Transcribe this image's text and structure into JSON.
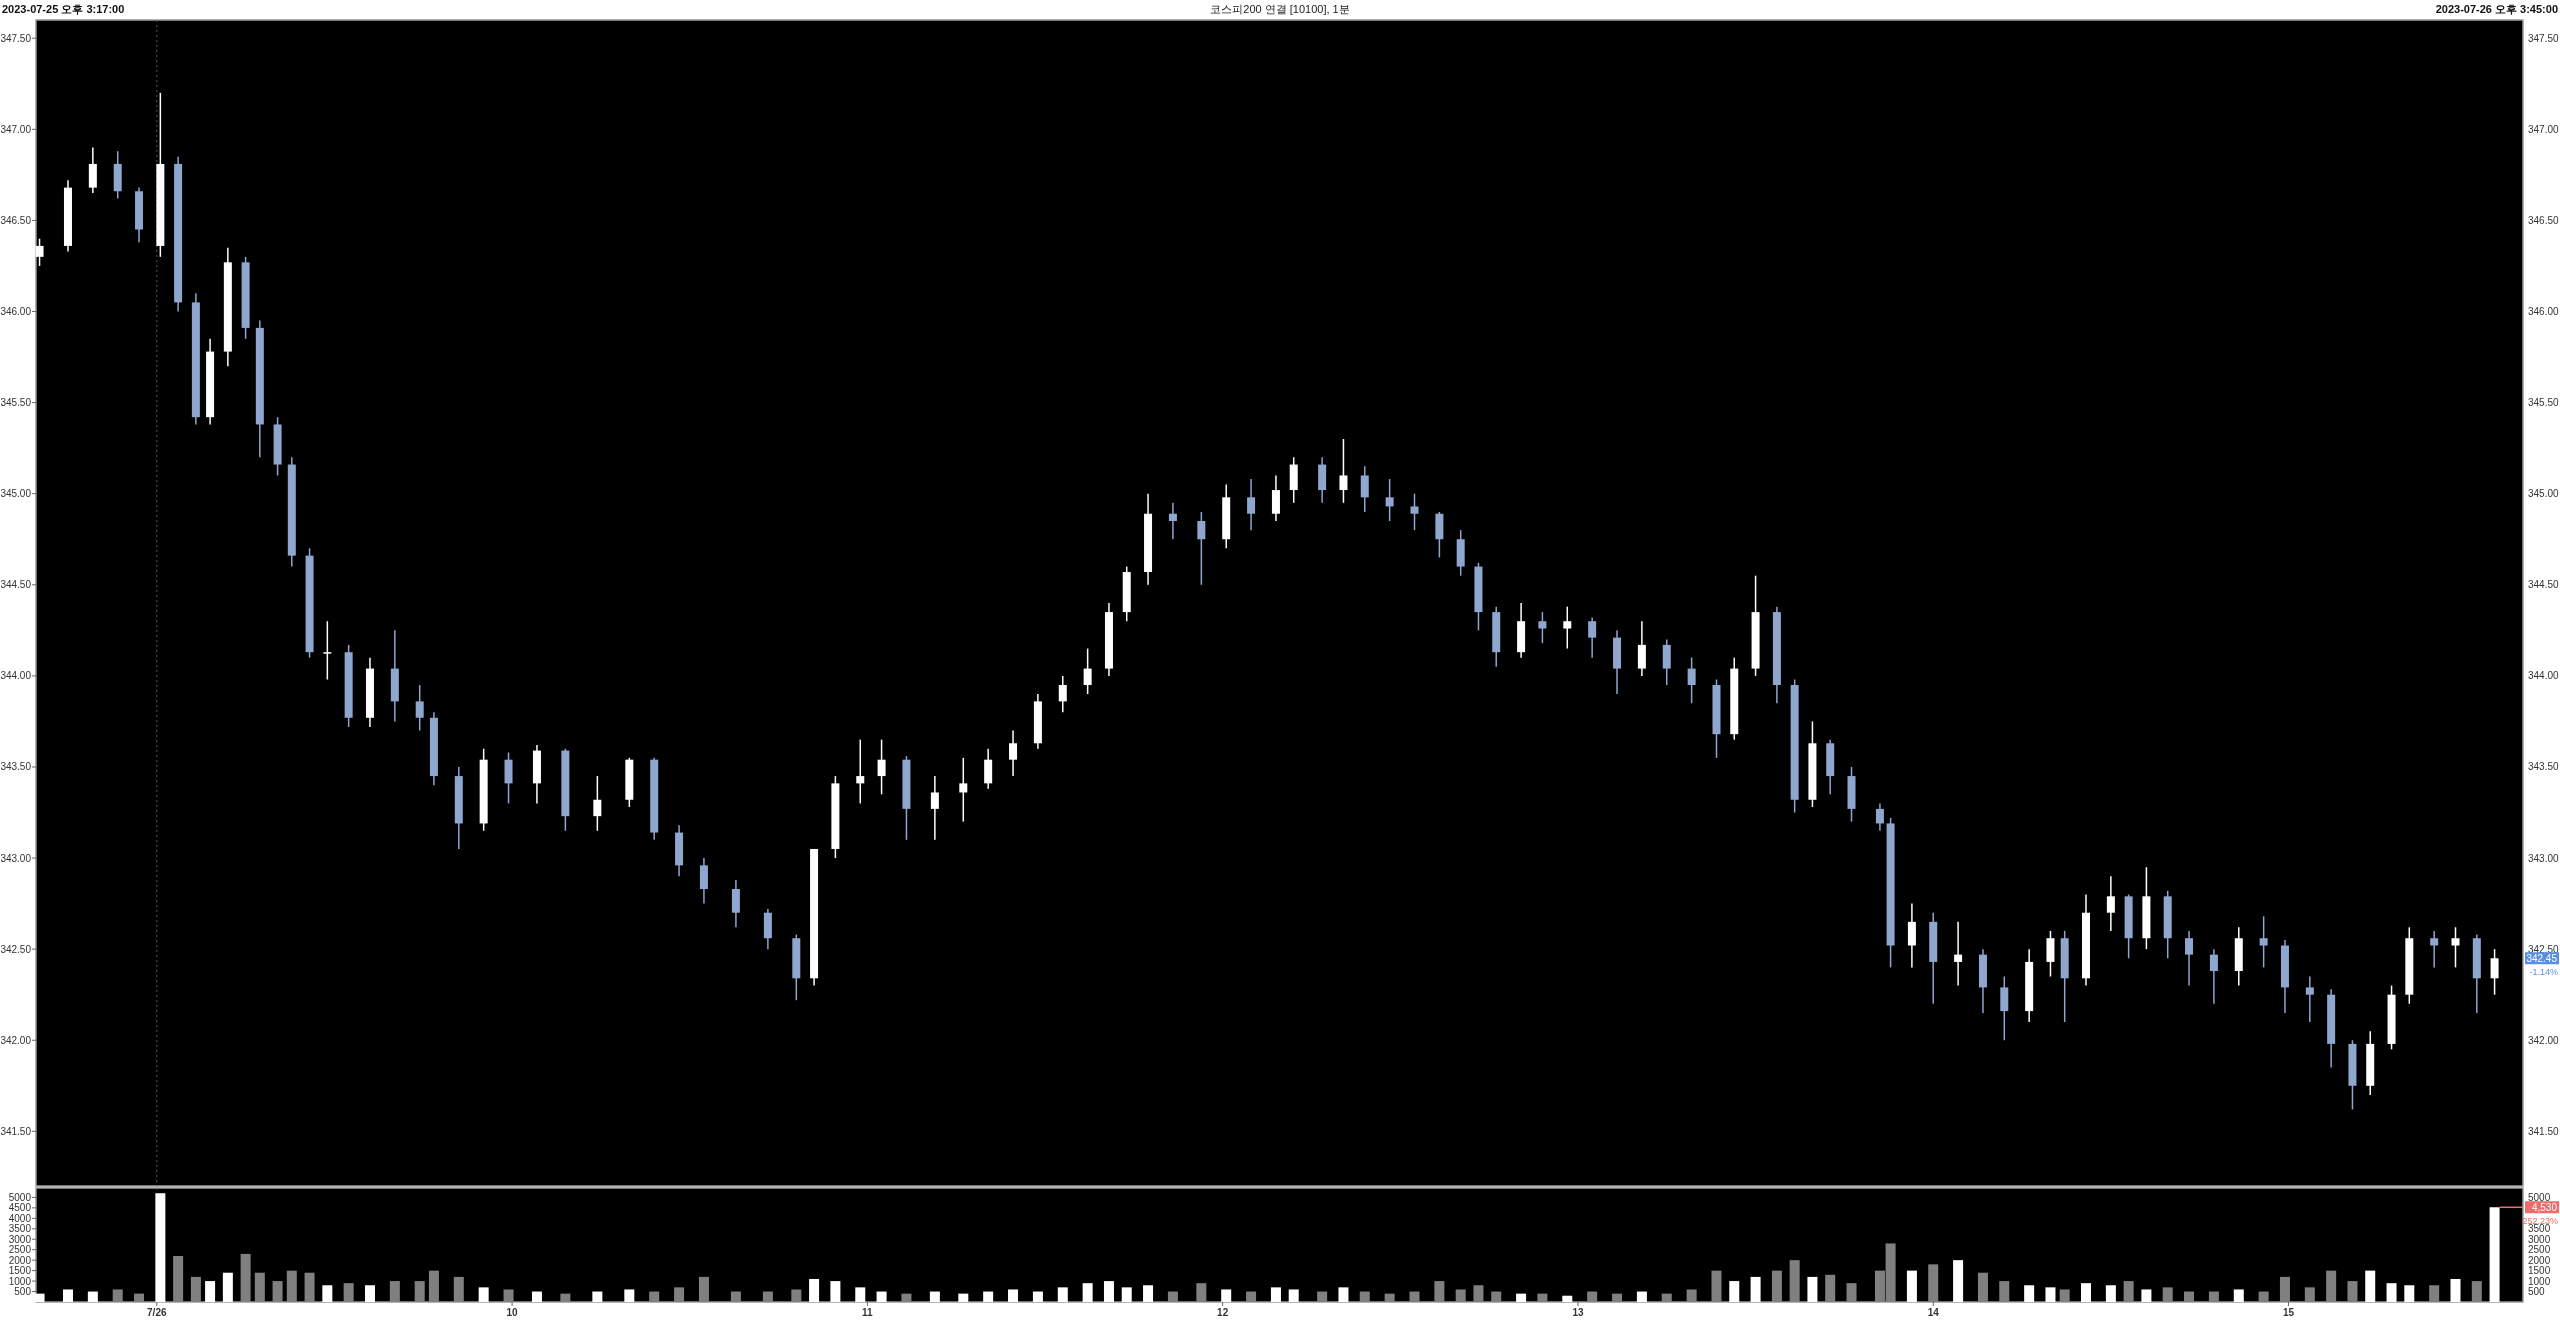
{
  "chart_data": [
    {
      "type": "candlestick",
      "title": "코스피200 연결 [10100], 1분",
      "annotations": [
        "2023-07-25 오후 3:17:00",
        "2023-07-26 오후 3:45:00",
        "342.45",
        "-1.14%"
      ],
      "y2lim": [
        341.2,
        347.6
      ],
      "y2ticks": [
        {
          "value": 341.5,
          "label": "341.50"
        },
        {
          "value": 342,
          "label": "342.00"
        },
        {
          "value": 342.5,
          "label": "342.50"
        },
        {
          "value": 343,
          "label": "343.00"
        },
        {
          "value": 343.5,
          "label": "343.50"
        },
        {
          "value": 344,
          "label": "344.00"
        },
        {
          "value": 344.5,
          "label": "344.50"
        },
        {
          "value": 345,
          "label": "345.00"
        },
        {
          "value": 345.5,
          "label": "345.50"
        },
        {
          "value": 346,
          "label": "346.00"
        },
        {
          "value": 346.5,
          "label": "346.50"
        },
        {
          "value": 347,
          "label": "347.00"
        },
        {
          "value": 347.5,
          "label": "347.50"
        }
      ],
      "x": [
        8.67,
        8.75,
        8.82,
        8.89,
        8.95,
        9.01,
        9.06,
        9.11,
        9.15,
        9.2,
        9.25,
        9.29,
        9.34,
        9.38,
        9.43,
        9.48,
        9.54,
        9.6,
        9.67,
        9.74,
        9.78,
        9.85,
        9.92,
        9.99,
        10.07,
        10.15,
        10.24,
        10.33,
        10.4,
        10.47,
        10.54,
        10.63,
        10.72,
        10.8,
        10.85,
        10.91,
        10.98,
        11.04,
        11.11,
        11.19,
        11.27,
        11.34,
        11.41,
        11.48,
        11.55,
        11.62,
        11.68,
        11.73,
        11.79,
        11.86,
        11.94,
        12.01,
        12.08,
        12.15,
        12.2,
        12.28,
        12.34,
        12.4,
        12.47,
        12.54,
        12.61,
        12.67,
        12.72,
        12.77,
        12.84,
        12.9,
        12.97,
        13.04,
        13.11,
        13.18,
        13.25,
        13.32,
        13.39,
        13.44,
        13.5,
        13.56,
        13.61,
        13.66,
        13.71,
        13.77,
        13.85,
        13.88,
        13.94,
        14.0,
        14.07,
        14.14,
        14.2,
        14.27,
        14.33,
        14.37,
        14.43,
        14.5,
        14.55,
        14.6,
        14.66,
        14.72,
        14.79,
        14.86,
        14.93,
        14.99,
        15.06,
        15.12,
        15.18,
        15.23,
        15.29,
        15.34,
        15.41,
        15.47,
        15.53,
        15.58
      ],
      "ohlc": [
        [
          346.3,
          346.4,
          346.25,
          346.36
        ],
        [
          346.36,
          346.72,
          346.33,
          346.68
        ],
        [
          346.68,
          346.9,
          346.65,
          346.81
        ],
        [
          346.81,
          346.88,
          346.62,
          346.66
        ],
        [
          346.66,
          346.68,
          346.38,
          346.45
        ],
        [
          346.36,
          347.2,
          346.3,
          346.81
        ],
        [
          346.81,
          346.85,
          346.0,
          346.05
        ],
        [
          346.05,
          346.1,
          345.38,
          345.42
        ],
        [
          345.42,
          345.85,
          345.38,
          345.78
        ],
        [
          345.78,
          346.35,
          345.7,
          346.27
        ],
        [
          346.27,
          346.3,
          345.85,
          345.91
        ],
        [
          345.91,
          345.95,
          345.2,
          345.38
        ],
        [
          345.38,
          345.42,
          345.1,
          345.16
        ],
        [
          345.16,
          345.2,
          344.6,
          344.66
        ],
        [
          344.66,
          344.7,
          344.1,
          344.13
        ],
        [
          344.13,
          344.3,
          343.98,
          344.13
        ],
        [
          344.13,
          344.17,
          343.72,
          343.77
        ],
        [
          343.77,
          344.1,
          343.72,
          344.04
        ],
        [
          344.04,
          344.25,
          343.75,
          343.86
        ],
        [
          343.86,
          343.95,
          343.7,
          343.77
        ],
        [
          343.77,
          343.8,
          343.4,
          343.45
        ],
        [
          343.45,
          343.5,
          343.05,
          343.19
        ],
        [
          343.19,
          343.6,
          343.15,
          343.54
        ],
        [
          343.54,
          343.58,
          343.3,
          343.41
        ],
        [
          343.41,
          343.62,
          343.3,
          343.59
        ],
        [
          343.59,
          343.6,
          343.15,
          343.23
        ],
        [
          343.23,
          343.45,
          343.15,
          343.32
        ],
        [
          343.32,
          343.55,
          343.28,
          343.54
        ],
        [
          343.54,
          343.55,
          343.1,
          343.14
        ],
        [
          343.14,
          343.18,
          342.9,
          342.96
        ],
        [
          342.96,
          343.0,
          342.75,
          342.83
        ],
        [
          342.83,
          342.88,
          342.62,
          342.7
        ],
        [
          342.7,
          342.72,
          342.5,
          342.56
        ],
        [
          342.56,
          342.58,
          342.22,
          342.34
        ],
        [
          342.34,
          343.05,
          342.3,
          343.05
        ],
        [
          343.05,
          343.45,
          343.0,
          343.41
        ],
        [
          343.41,
          343.65,
          343.3,
          343.45
        ],
        [
          343.45,
          343.65,
          343.35,
          343.54
        ],
        [
          343.54,
          343.56,
          343.1,
          343.27
        ],
        [
          343.27,
          343.45,
          343.1,
          343.36
        ],
        [
          343.36,
          343.55,
          343.2,
          343.41
        ],
        [
          343.41,
          343.6,
          343.38,
          343.54
        ],
        [
          343.54,
          343.7,
          343.45,
          343.63
        ],
        [
          343.63,
          343.9,
          343.6,
          343.86
        ],
        [
          343.86,
          344.0,
          343.8,
          343.95
        ],
        [
          343.95,
          344.15,
          343.9,
          344.04
        ],
        [
          344.04,
          344.4,
          344.0,
          344.35
        ],
        [
          344.35,
          344.6,
          344.3,
          344.57
        ],
        [
          344.57,
          345.0,
          344.5,
          344.89
        ],
        [
          344.89,
          344.95,
          344.75,
          344.85
        ],
        [
          344.85,
          344.9,
          344.5,
          344.75
        ],
        [
          344.75,
          345.05,
          344.7,
          344.98
        ],
        [
          344.98,
          345.08,
          344.8,
          344.89
        ],
        [
          344.89,
          345.1,
          344.85,
          345.02
        ],
        [
          345.02,
          345.2,
          344.95,
          345.16
        ],
        [
          345.16,
          345.2,
          344.95,
          345.02
        ],
        [
          345.02,
          345.3,
          344.95,
          345.1
        ],
        [
          345.1,
          345.15,
          344.9,
          344.98
        ],
        [
          344.98,
          345.08,
          344.85,
          344.93
        ],
        [
          344.93,
          345.0,
          344.8,
          344.89
        ],
        [
          344.89,
          344.9,
          344.65,
          344.75
        ],
        [
          344.75,
          344.8,
          344.55,
          344.6
        ],
        [
          344.6,
          344.62,
          344.25,
          344.35
        ],
        [
          344.35,
          344.38,
          344.05,
          344.13
        ],
        [
          344.13,
          344.4,
          344.1,
          344.3
        ],
        [
          344.3,
          344.35,
          344.18,
          344.26
        ],
        [
          344.26,
          344.38,
          344.15,
          344.3
        ],
        [
          344.3,
          344.32,
          344.1,
          344.21
        ],
        [
          344.21,
          344.25,
          343.9,
          344.04
        ],
        [
          344.04,
          344.3,
          344.0,
          344.17
        ],
        [
          344.17,
          344.2,
          343.95,
          344.04
        ],
        [
          344.04,
          344.1,
          343.85,
          343.95
        ],
        [
          343.95,
          343.98,
          343.55,
          343.68
        ],
        [
          343.68,
          344.1,
          343.65,
          344.04
        ],
        [
          344.04,
          344.55,
          344.0,
          344.35
        ],
        [
          344.35,
          344.38,
          343.85,
          343.95
        ],
        [
          343.95,
          343.98,
          343.25,
          343.32
        ],
        [
          343.32,
          343.75,
          343.28,
          343.63
        ],
        [
          343.63,
          343.65,
          343.35,
          343.45
        ],
        [
          343.45,
          343.5,
          343.2,
          343.27
        ],
        [
          343.27,
          343.3,
          343.15,
          343.19
        ],
        [
          343.19,
          343.22,
          342.4,
          342.52
        ],
        [
          342.52,
          342.75,
          342.4,
          342.65
        ],
        [
          342.65,
          342.7,
          342.2,
          342.43
        ],
        [
          342.43,
          342.65,
          342.3,
          342.47
        ],
        [
          342.47,
          342.5,
          342.15,
          342.29
        ],
        [
          342.29,
          342.35,
          342.0,
          342.16
        ],
        [
          342.16,
          342.5,
          342.1,
          342.43
        ],
        [
          342.43,
          342.6,
          342.35,
          342.56
        ],
        [
          342.56,
          342.6,
          342.1,
          342.34
        ],
        [
          342.34,
          342.8,
          342.3,
          342.7
        ],
        [
          342.7,
          342.9,
          342.6,
          342.79
        ],
        [
          342.79,
          342.8,
          342.45,
          342.56
        ],
        [
          342.56,
          342.95,
          342.5,
          342.79
        ],
        [
          342.79,
          342.82,
          342.45,
          342.56
        ],
        [
          342.56,
          342.6,
          342.3,
          342.47
        ],
        [
          342.47,
          342.5,
          342.2,
          342.38
        ],
        [
          342.38,
          342.62,
          342.3,
          342.56
        ],
        [
          342.56,
          342.68,
          342.4,
          342.52
        ],
        [
          342.52,
          342.55,
          342.15,
          342.29
        ],
        [
          342.29,
          342.35,
          342.1,
          342.25
        ],
        [
          342.25,
          342.28,
          341.85,
          341.98
        ],
        [
          341.98,
          342.0,
          341.62,
          341.75
        ],
        [
          341.75,
          342.05,
          341.7,
          341.98
        ],
        [
          341.98,
          342.3,
          341.95,
          342.25
        ],
        [
          342.25,
          342.62,
          342.2,
          342.56
        ],
        [
          342.56,
          342.6,
          342.4,
          342.52
        ],
        [
          342.52,
          342.62,
          342.4,
          342.56
        ],
        [
          342.56,
          342.58,
          342.15,
          342.34
        ],
        [
          342.34,
          342.5,
          342.25,
          342.45
        ]
      ],
      "colors": [
        "#ffffff",
        "#ffffff",
        "#ffffff",
        "#8fa6cf",
        "#8fa6cf",
        "#ffffff",
        "#8fa6cf",
        "#8fa6cf",
        "#ffffff",
        "#ffffff",
        "#8fa6cf",
        "#8fa6cf",
        "#8fa6cf",
        "#8fa6cf",
        "#8fa6cf",
        "#ffffff",
        "#8fa6cf",
        "#ffffff",
        "#8fa6cf",
        "#8fa6cf",
        "#8fa6cf",
        "#8fa6cf",
        "#ffffff",
        "#8fa6cf",
        "#ffffff",
        "#8fa6cf",
        "#ffffff",
        "#ffffff",
        "#8fa6cf",
        "#8fa6cf",
        "#8fa6cf",
        "#8fa6cf",
        "#8fa6cf",
        "#8fa6cf",
        "#ffffff",
        "#ffffff",
        "#ffffff",
        "#ffffff",
        "#8fa6cf",
        "#ffffff",
        "#ffffff",
        "#ffffff",
        "#ffffff",
        "#ffffff",
        "#ffffff",
        "#ffffff",
        "#ffffff",
        "#ffffff",
        "#ffffff",
        "#8fa6cf",
        "#8fa6cf",
        "#ffffff",
        "#8fa6cf",
        "#ffffff",
        "#ffffff",
        "#8fa6cf",
        "#ffffff",
        "#8fa6cf",
        "#8fa6cf",
        "#8fa6cf",
        "#8fa6cf",
        "#8fa6cf",
        "#8fa6cf",
        "#8fa6cf",
        "#ffffff",
        "#8fa6cf",
        "#ffffff",
        "#8fa6cf",
        "#8fa6cf",
        "#ffffff",
        "#8fa6cf",
        "#8fa6cf",
        "#8fa6cf",
        "#ffffff",
        "#ffffff",
        "#8fa6cf",
        "#8fa6cf",
        "#ffffff",
        "#8fa6cf",
        "#8fa6cf",
        "#8fa6cf",
        "#8fa6cf",
        "#ffffff",
        "#8fa6cf",
        "#ffffff",
        "#8fa6cf",
        "#8fa6cf",
        "#ffffff",
        "#ffffff",
        "#8fa6cf",
        "#ffffff",
        "#ffffff",
        "#8fa6cf",
        "#ffffff",
        "#8fa6cf",
        "#8fa6cf",
        "#8fa6cf",
        "#ffffff",
        "#8fa6cf",
        "#8fa6cf",
        "#8fa6cf",
        "#8fa6cf",
        "#8fa6cf",
        "#ffffff",
        "#ffffff",
        "#ffffff",
        "#8fa6cf",
        "#ffffff",
        "#8fa6cf",
        "#ffffff"
      ],
      "xlim": [
        8.66,
        15.66
      ],
      "ylim": [
        341.2,
        347.6
      ],
      "yticks": [
        {
          "value": 341.5,
          "label": "341.50"
        },
        {
          "value": 342,
          "label": "342.00"
        },
        {
          "value": 342.5,
          "label": "342.50"
        },
        {
          "value": 343,
          "label": "343.00"
        },
        {
          "value": 343.5,
          "label": "343.50"
        },
        {
          "value": 344,
          "label": "344.00"
        },
        {
          "value": 344.5,
          "label": "344.50"
        },
        {
          "value": 345,
          "label": "345.00"
        },
        {
          "value": 345.5,
          "label": "345.50"
        },
        {
          "value": 346,
          "label": "346.00"
        },
        {
          "value": 346.5,
          "label": "346.50"
        },
        {
          "value": 347,
          "label": "347.00"
        },
        {
          "value": 347.5,
          "label": "347.50"
        }
      ],
      "tick_labels": "y",
      "ref_lines": [
        {
          "axis": "x",
          "value": 9,
          "color": "#555555",
          "line_style": "dotted"
        }
      ]
    },
    {
      "type": "bar",
      "annotations": [
        {
          "text": "4,530",
          "x": 15.58,
          "y": 4530
        },
        "252.23%"
      ],
      "x": [
        8.67,
        8.75,
        8.82,
        8.89,
        8.95,
        9.01,
        9.06,
        9.11,
        9.15,
        9.2,
        9.25,
        9.29,
        9.34,
        9.38,
        9.43,
        9.48,
        9.54,
        9.6,
        9.67,
        9.74,
        9.78,
        9.85,
        9.92,
        9.99,
        10.07,
        10.15,
        10.24,
        10.33,
        10.4,
        10.47,
        10.54,
        10.63,
        10.72,
        10.8,
        10.85,
        10.91,
        10.98,
        11.04,
        11.11,
        11.19,
        11.27,
        11.34,
        11.41,
        11.48,
        11.55,
        11.62,
        11.68,
        11.73,
        11.79,
        11.86,
        11.94,
        12.01,
        12.08,
        12.15,
        12.2,
        12.28,
        12.34,
        12.4,
        12.47,
        12.54,
        12.61,
        12.67,
        12.72,
        12.77,
        12.84,
        12.9,
        12.97,
        13.04,
        13.11,
        13.18,
        13.25,
        13.32,
        13.39,
        13.44,
        13.5,
        13.56,
        13.61,
        13.66,
        13.71,
        13.77,
        13.85,
        13.88,
        13.94,
        14.0,
        14.07,
        14.14,
        14.2,
        14.27,
        14.33,
        14.37,
        14.43,
        14.5,
        14.55,
        14.6,
        14.66,
        14.72,
        14.79,
        14.86,
        14.93,
        14.99,
        15.06,
        15.12,
        15.18,
        15.23,
        15.29,
        15.34,
        15.41,
        15.47,
        15.53,
        15.58
      ],
      "values": [
        400,
        600,
        500,
        600,
        400,
        5200,
        2200,
        1200,
        1000,
        1400,
        2300,
        1400,
        1000,
        1500,
        1400,
        800,
        900,
        800,
        1000,
        1000,
        1500,
        1200,
        700,
        600,
        500,
        400,
        500,
        600,
        500,
        700,
        1200,
        500,
        500,
        600,
        1100,
        1000,
        700,
        500,
        400,
        500,
        400,
        500,
        600,
        500,
        700,
        900,
        1000,
        700,
        800,
        500,
        900,
        600,
        500,
        700,
        600,
        500,
        700,
        500,
        400,
        500,
        1000,
        600,
        800,
        500,
        400,
        400,
        300,
        500,
        400,
        500,
        400,
        600,
        1500,
        1000,
        1200,
        1500,
        2000,
        1200,
        1300,
        900,
        1500,
        2800,
        1500,
        1800,
        2000,
        1400,
        1000,
        800,
        700,
        600,
        900,
        800,
        1000,
        600,
        700,
        500,
        500,
        600,
        500,
        1200,
        700,
        1500,
        1000,
        1500,
        900,
        800,
        800,
        1100,
        1000,
        4530
      ],
      "colors": [
        "#ffffff",
        "#ffffff",
        "#ffffff",
        "#808080",
        "#808080",
        "#ffffff",
        "#808080",
        "#808080",
        "#ffffff",
        "#ffffff",
        "#808080",
        "#808080",
        "#808080",
        "#808080",
        "#808080",
        "#ffffff",
        "#808080",
        "#ffffff",
        "#808080",
        "#808080",
        "#808080",
        "#808080",
        "#ffffff",
        "#808080",
        "#ffffff",
        "#808080",
        "#ffffff",
        "#ffffff",
        "#808080",
        "#808080",
        "#808080",
        "#808080",
        "#808080",
        "#808080",
        "#ffffff",
        "#ffffff",
        "#ffffff",
        "#ffffff",
        "#808080",
        "#ffffff",
        "#ffffff",
        "#ffffff",
        "#ffffff",
        "#ffffff",
        "#ffffff",
        "#ffffff",
        "#ffffff",
        "#ffffff",
        "#ffffff",
        "#808080",
        "#808080",
        "#ffffff",
        "#808080",
        "#ffffff",
        "#ffffff",
        "#808080",
        "#ffffff",
        "#808080",
        "#808080",
        "#808080",
        "#808080",
        "#808080",
        "#808080",
        "#808080",
        "#ffffff",
        "#808080",
        "#ffffff",
        "#808080",
        "#808080",
        "#ffffff",
        "#808080",
        "#808080",
        "#808080",
        "#ffffff",
        "#ffffff",
        "#808080",
        "#808080",
        "#ffffff",
        "#808080",
        "#808080",
        "#808080",
        "#808080",
        "#ffffff",
        "#808080",
        "#ffffff",
        "#808080",
        "#808080",
        "#ffffff",
        "#ffffff",
        "#808080",
        "#ffffff",
        "#ffffff",
        "#808080",
        "#ffffff",
        "#808080",
        "#808080",
        "#808080",
        "#ffffff",
        "#808080",
        "#808080",
        "#808080",
        "#808080",
        "#808080",
        "#ffffff",
        "#ffffff",
        "#ffffff",
        "#808080",
        "#ffffff",
        "#808080",
        "#ffffff"
      ],
      "xlim": [
        8.66,
        15.66
      ],
      "ylim": [
        0,
        5450
      ],
      "yticks": [
        500,
        1000,
        1500,
        2000,
        2500,
        3000,
        3500,
        4000,
        4500,
        5000
      ],
      "y2lim": [
        0,
        5450
      ],
      "y2ticks": [
        500,
        1000,
        1500,
        2000,
        2500,
        3000,
        3500,
        5000
      ],
      "xticks": [
        {
          "value": 9,
          "label": "7/26"
        },
        10,
        11,
        12,
        13,
        14,
        15
      ],
      "ref_lines": [
        {
          "axis": "x",
          "value": 9,
          "color": "#555555",
          "line_style": "dotted"
        }
      ]
    }
  ]
}
